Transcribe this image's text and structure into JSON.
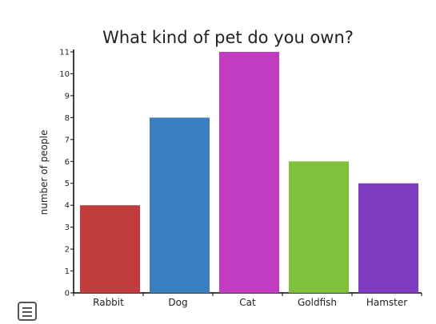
{
  "chart_data": {
    "type": "bar",
    "title": "What kind of pet do you own?",
    "xlabel": "",
    "ylabel": "number of people",
    "categories": [
      "Rabbit",
      "Dog",
      "Cat",
      "Goldfish",
      "Hamster"
    ],
    "values": [
      4,
      8,
      11,
      6,
      5
    ],
    "colors": [
      "#c13c3c",
      "#3c7fc1",
      "#c13cc1",
      "#7fc13c",
      "#7f3cc1"
    ],
    "ylim": [
      0,
      11
    ],
    "yticks": [
      0,
      1,
      2,
      3,
      4,
      5,
      6,
      7,
      8,
      9,
      10,
      11
    ],
    "grid": false,
    "legend": "none"
  },
  "menu": {
    "icon": "menu-icon"
  }
}
